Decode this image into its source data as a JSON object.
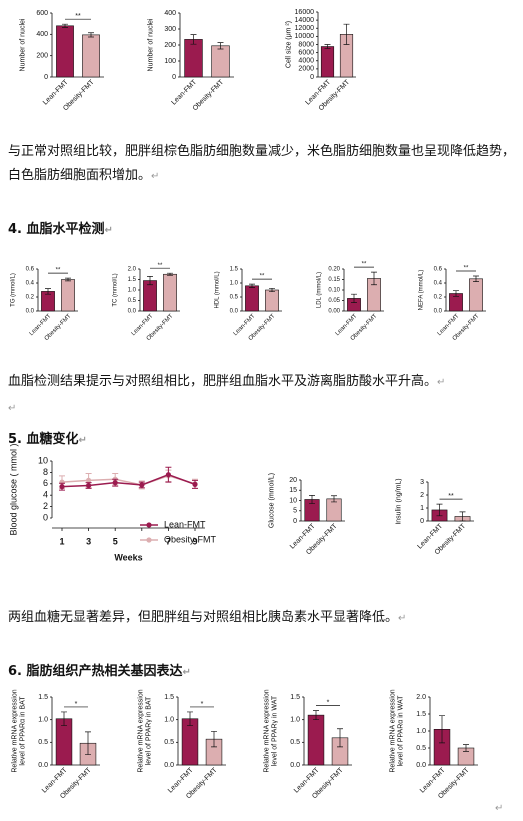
{
  "paragraphs": [
    "与正常对照组比较，肥胖组棕色脂肪细胞数量减少，米色脂肪细胞数量也呈现降低趋势，白色脂肪细胞面积增加。",
    "血脂检测结果提示与对照组相比，肥胖组血脂水平及游离脂肪酸水平升高。",
    "两组血糖无显著差异，但肥胖组与对照组相比胰岛素水平显著降低。"
  ],
  "headings": [
    "4. 血脂水平检测",
    "5. 血糖变化",
    "6. 脂肪组织产热相关基因表达"
  ],
  "return_mark": "↵",
  "chart_data": [
    {
      "type": "bar",
      "ylabel": "Number of nuclei",
      "categories": [
        "Lean-FMT",
        "Obesity-FMT"
      ],
      "values": [
        480,
        395
      ],
      "errors": [
        15,
        20
      ],
      "colors": [
        "#9b1b4f",
        "#dcaeb0"
      ],
      "ylim": [
        0,
        600
      ],
      "yticks": [
        0,
        200,
        400,
        600
      ],
      "significance": "**"
    },
    {
      "type": "bar",
      "ylabel": "Number of nuclei",
      "categories": [
        "Lean-FMT",
        "Obesity-FMT"
      ],
      "values": [
        235,
        195
      ],
      "errors": [
        30,
        20
      ],
      "colors": [
        "#9b1b4f",
        "#dcaeb0"
      ],
      "ylim": [
        0,
        400
      ],
      "yticks": [
        0,
        100,
        200,
        300,
        400
      ]
    },
    {
      "type": "bar",
      "ylabel": "Cell size (μm ²)",
      "categories": [
        "Lean-FMT",
        "Obesity-FMT"
      ],
      "values": [
        7500,
        10500
      ],
      "errors": [
        500,
        2500
      ],
      "colors": [
        "#9b1b4f",
        "#dcaeb0"
      ],
      "ylim": [
        0,
        16000
      ],
      "yticks": [
        0,
        2000,
        4000,
        6000,
        8000,
        10000,
        12000,
        14000,
        16000
      ]
    },
    {
      "type": "bar",
      "ylabel": "TG (mmol/L)",
      "categories": [
        "Lean-FMT",
        "Obesity-FMT"
      ],
      "values": [
        0.28,
        0.45
      ],
      "errors": [
        0.04,
        0.02
      ],
      "colors": [
        "#9b1b4f",
        "#dcaeb0"
      ],
      "ylim": [
        0,
        0.6
      ],
      "yticks": [
        {
          "value": 0,
          "label": "0.0"
        },
        {
          "value": 0.2,
          "label": "0.2"
        },
        {
          "value": 0.4,
          "label": "0.4"
        },
        {
          "value": 0.6,
          "label": "0.6"
        }
      ],
      "significance": "**"
    },
    {
      "type": "bar",
      "ylabel": "TC (mmol/L)",
      "categories": [
        "Lean-FMT",
        "Obesity-FMT"
      ],
      "values": [
        1.45,
        1.75
      ],
      "errors": [
        0.2,
        0.05
      ],
      "colors": [
        "#9b1b4f",
        "#dcaeb0"
      ],
      "ylim": [
        0,
        2
      ],
      "yticks": [
        {
          "value": 0,
          "label": "0.0"
        },
        {
          "value": 0.5,
          "label": "0.5"
        },
        {
          "value": 1,
          "label": "1.0"
        },
        {
          "value": 1.5,
          "label": "1.5"
        },
        {
          "value": 2,
          "label": "2.0"
        }
      ],
      "significance": "**"
    },
    {
      "type": "bar",
      "ylabel": "HDL (mmol/L)",
      "categories": [
        "Lean-FMT",
        "Obesity-FMT"
      ],
      "values": [
        0.9,
        0.75
      ],
      "errors": [
        0.06,
        0.06
      ],
      "colors": [
        "#9b1b4f",
        "#dcaeb0"
      ],
      "ylim": [
        0,
        1.5
      ],
      "yticks": [
        {
          "value": 0,
          "label": "0.0"
        },
        {
          "value": 0.5,
          "label": "0.5"
        },
        {
          "value": 1,
          "label": "1.0"
        },
        {
          "value": 1.5,
          "label": "1.5"
        }
      ],
      "significance": "**"
    },
    {
      "type": "bar",
      "ylabel": "LDL (mmol/L)",
      "categories": [
        "Lean-FMT",
        "Obesity-FMT"
      ],
      "values": [
        0.06,
        0.155
      ],
      "errors": [
        0.02,
        0.03
      ],
      "colors": [
        "#9b1b4f",
        "#dcaeb0"
      ],
      "ylim": [
        0,
        0.2
      ],
      "yticks": [
        {
          "value": 0,
          "label": "0.00"
        },
        {
          "value": 0.05,
          "label": "0.05"
        },
        {
          "value": 0.1,
          "label": "0.10"
        },
        {
          "value": 0.15,
          "label": "0.15"
        },
        {
          "value": 0.2,
          "label": "0.20"
        }
      ],
      "significance": "**"
    },
    {
      "type": "bar",
      "ylabel": "NEFA (mmol/L)",
      "categories": [
        "Lean-FMT",
        "Obesity-FMT"
      ],
      "values": [
        0.25,
        0.46
      ],
      "errors": [
        0.04,
        0.04
      ],
      "colors": [
        "#9b1b4f",
        "#dcaeb0"
      ],
      "ylim": [
        0,
        0.6
      ],
      "yticks": [
        {
          "value": 0,
          "label": "0.0"
        },
        {
          "value": 0.2,
          "label": "0.2"
        },
        {
          "value": 0.4,
          "label": "0.4"
        },
        {
          "value": 0.6,
          "label": "0.6"
        }
      ],
      "significance": "**"
    },
    {
      "type": "line",
      "ylabel": "Blood glucose ( mmol )",
      "xlabel": "Weeks",
      "categories": [
        "1",
        "3",
        "5",
        null,
        "7",
        "9"
      ],
      "ylim": [
        0,
        10
      ],
      "yticks": [
        0,
        2,
        4,
        6,
        8,
        10
      ],
      "series": [
        {
          "name": "Lean-FMT",
          "color": "#9b1b4f",
          "values": [
            5.5,
            5.7,
            6.2,
            5.8,
            7.6,
            5.9
          ],
          "errors": [
            0.6,
            0.5,
            0.6,
            0.5,
            1.3,
            0.7
          ]
        },
        {
          "name": "Obesity-FMT",
          "color": "#dcaeb0",
          "values": [
            6.3,
            6.6,
            6.8,
            5.8,
            7.4,
            6.0
          ],
          "errors": [
            1.1,
            1.2,
            1.0,
            0.7,
            1.0,
            0.8
          ]
        }
      ]
    },
    {
      "type": "bar",
      "ylabel": "Glucose (mmol/L)",
      "categories": [
        "Lean-FMT",
        "Obesity-FMT"
      ],
      "values": [
        10.5,
        10.8
      ],
      "errors": [
        2,
        1.5
      ],
      "colors": [
        "#9b1b4f",
        "#dcaeb0"
      ],
      "ylim": [
        0,
        20
      ],
      "yticks": [
        0,
        5,
        10,
        15,
        20
      ]
    },
    {
      "type": "bar",
      "ylabel": "Insulin (ng/mL)",
      "categories": [
        "Lean-FMT",
        "Obesity-FMT"
      ],
      "values": [
        0.85,
        0.35
      ],
      "errors": [
        0.45,
        0.35
      ],
      "colors": [
        "#9b1b4f",
        "#dcaeb0"
      ],
      "ylim": [
        0,
        3
      ],
      "yticks": [
        0,
        1,
        2,
        3
      ],
      "significance": "**"
    },
    {
      "type": "bar",
      "ylabel": [
        "Relative mRNA expression",
        "level of PPARα in BAT"
      ],
      "categories": [
        "Lean-FMT",
        "Obesity-FMT"
      ],
      "values": [
        1.02,
        0.48
      ],
      "errors": [
        0.15,
        0.25
      ],
      "colors": [
        "#9b1b4f",
        "#dcaeb0"
      ],
      "ylim": [
        0,
        1.5
      ],
      "yticks": [
        {
          "value": 0,
          "label": "0.0"
        },
        {
          "value": 0.5,
          "label": "0.5"
        },
        {
          "value": 1,
          "label": "1.0"
        },
        {
          "value": 1.5,
          "label": "1.5"
        }
      ],
      "significance": "*"
    },
    {
      "type": "bar",
      "ylabel": [
        "Relative mRNA expression",
        "level of PPARγ in BAT"
      ],
      "categories": [
        "Lean-FMT",
        "Obesity-FMT"
      ],
      "values": [
        1.02,
        0.57
      ],
      "errors": [
        0.15,
        0.17
      ],
      "colors": [
        "#9b1b4f",
        "#dcaeb0"
      ],
      "ylim": [
        0,
        1.5
      ],
      "yticks": [
        {
          "value": 0,
          "label": "0.0"
        },
        {
          "value": 0.5,
          "label": "0.5"
        },
        {
          "value": 1,
          "label": "1.0"
        },
        {
          "value": 1.5,
          "label": "1.5"
        }
      ],
      "significance": "*"
    },
    {
      "type": "bar",
      "ylabel": [
        "Relative mRNA expression",
        "level of PPARγ in WAT"
      ],
      "categories": [
        "Lean-FMT",
        "Obesity-FMT"
      ],
      "values": [
        1.1,
        0.6
      ],
      "errors": [
        0.1,
        0.2
      ],
      "colors": [
        "#9b1b4f",
        "#dcaeb0"
      ],
      "ylim": [
        0,
        1.5
      ],
      "yticks": [
        {
          "value": 0,
          "label": "0.0"
        },
        {
          "value": 0.5,
          "label": "0.5"
        },
        {
          "value": 1,
          "label": "1.0"
        },
        {
          "value": 1.5,
          "label": "1.5"
        }
      ],
      "significance": "*"
    },
    {
      "type": "bar",
      "ylabel": [
        "Relative mRNA expression",
        "level of PPARα in WAT"
      ],
      "categories": [
        "Lean-FMT",
        "Obesity-FMT"
      ],
      "values": [
        1.05,
        0.5
      ],
      "errors": [
        0.4,
        0.1
      ],
      "colors": [
        "#9b1b4f",
        "#dcaeb0"
      ],
      "ylim": [
        0,
        2
      ],
      "yticks": [
        {
          "value": 0,
          "label": "0.0"
        },
        {
          "value": 0.5,
          "label": "0.5"
        },
        {
          "value": 1,
          "label": "1.0"
        },
        {
          "value": 1.5,
          "label": "1.5"
        },
        {
          "value": 2,
          "label": "2.0"
        }
      ]
    }
  ]
}
